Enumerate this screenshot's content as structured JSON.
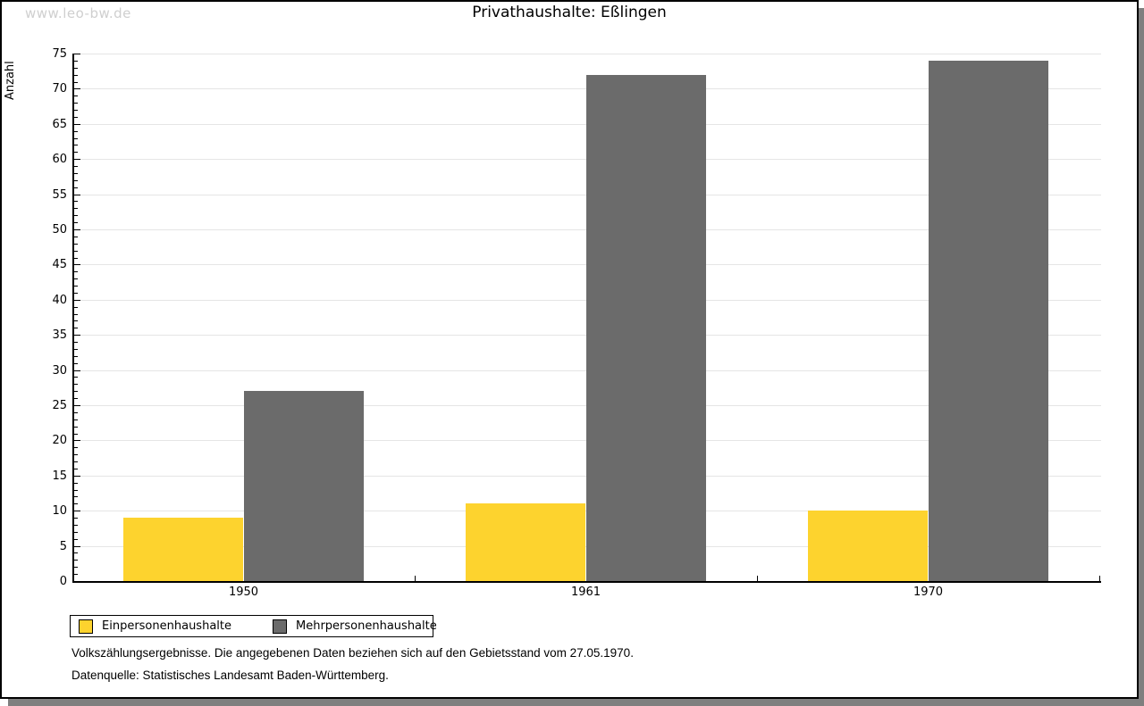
{
  "watermark": "www.leo-bw.de",
  "title": "Privathaushalte: Eßlingen",
  "chart_data": {
    "type": "bar",
    "title": "Privathaushalte: Eßlingen",
    "categories": [
      "1950",
      "1961",
      "1970"
    ],
    "series": [
      {
        "name": "Einpersonenhaushalte",
        "color": "#fdd32e",
        "values": [
          9,
          11,
          10
        ]
      },
      {
        "name": "Mehrpersonenhaushalte",
        "color": "#6b6b6b",
        "values": [
          27,
          72,
          74
        ]
      }
    ],
    "xlabel": "",
    "ylabel": "Anzahl",
    "ylim": [
      0,
      75
    ],
    "ytick_step": 5,
    "minor_tick_step": 1,
    "grid": true,
    "gridline_color": "#e5e5e5",
    "legend_position": "bottom-left"
  },
  "footnotes": [
    "Volkszählungsergebnisse. Die angegebenen Daten beziehen sich auf den Gebietsstand vom 27.05.1970.",
    "Datenquelle: Statistisches Landesamt Baden-Württemberg."
  ],
  "colors": {
    "bar_yellow": "#fdd32e",
    "bar_gray": "#6b6b6b",
    "frame_shadow": "#7f7f7f",
    "watermark_gray": "#cfcfcf"
  }
}
